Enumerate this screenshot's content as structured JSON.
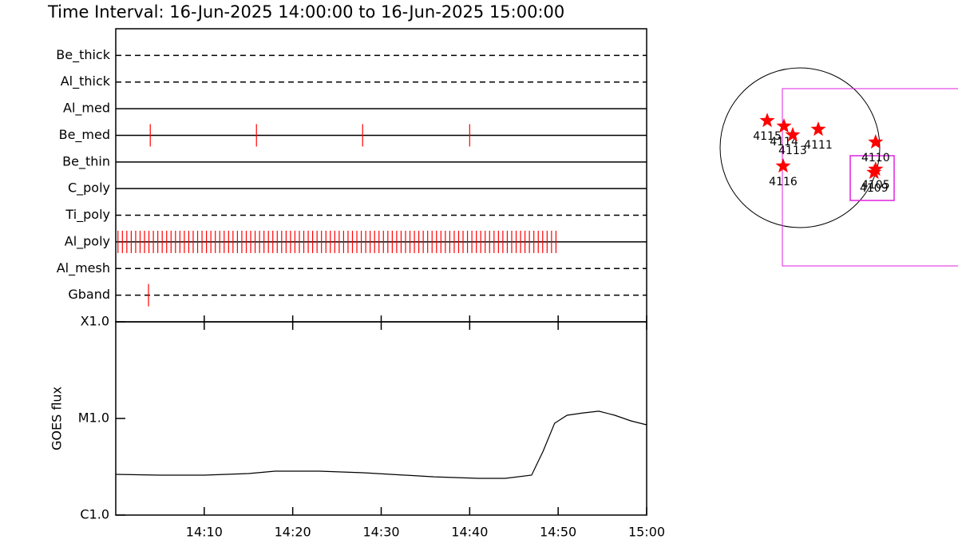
{
  "chart_data": [
    {
      "type": "timeline",
      "title": "Time Interval: 16-Jun-2025 14:00:00 to 16-Jun-2025 15:00:00",
      "xlim": [
        0,
        60
      ],
      "categories": [
        "Be_thick",
        "Al_thick",
        "Al_med",
        "Be_med",
        "Be_thin",
        "C_poly",
        "Ti_poly",
        "Al_poly",
        "Al_mesh",
        "Gband"
      ],
      "line_styles": [
        "dashed",
        "dashed",
        "solid",
        "solid",
        "solid",
        "solid",
        "dashed",
        "solid",
        "dashed",
        "dashed"
      ],
      "color": "#ff0000",
      "exposures": [
        [],
        [],
        [],
        [
          3.9,
          15.9,
          27.9,
          40
        ],
        [],
        [],
        [],
        [
          0.25,
          0.75,
          1.25,
          1.75,
          2.25,
          2.75,
          3.25,
          3.75,
          4.25,
          4.75,
          5.25,
          5.75,
          6.25,
          6.75,
          7.25,
          7.75,
          8.25,
          8.75,
          9.25,
          9.75,
          10.25,
          10.75,
          11.25,
          11.75,
          12.25,
          12.75,
          13.25,
          13.75,
          14.25,
          14.75,
          15.25,
          15.75,
          16.25,
          16.75,
          17.25,
          17.75,
          18.25,
          18.75,
          19.25,
          19.75,
          20.25,
          20.75,
          21.25,
          21.75,
          22.25,
          22.75,
          23.25,
          23.75,
          24.25,
          24.75,
          25.25,
          25.75,
          26.25,
          26.75,
          27.25,
          27.75,
          28.25,
          28.75,
          29.25,
          29.75,
          30.25,
          30.75,
          31.25,
          31.75,
          32.25,
          32.75,
          33.25,
          33.75,
          34.25,
          34.75,
          35.25,
          35.75,
          36.25,
          36.75,
          37.25,
          37.75,
          38.25,
          38.75,
          39.25,
          39.75,
          40.25,
          40.75,
          41.25,
          41.75,
          42.25,
          42.75,
          43.25,
          43.75,
          44.25,
          44.75,
          45.25,
          45.75,
          46.25,
          46.75,
          47.25,
          47.75,
          48.25,
          48.75,
          49.25,
          49.75
        ],
        [],
        [
          3.7
        ]
      ]
    },
    {
      "type": "line",
      "ylabel": "GOES flux",
      "log_scale": true,
      "color": "#000000",
      "xlim": [
        0,
        60
      ],
      "xticks": [
        {
          "value": 10,
          "label": "14:10"
        },
        {
          "value": 20,
          "label": "14:20"
        },
        {
          "value": 30,
          "label": "14:30"
        },
        {
          "value": 40,
          "label": "14:40"
        },
        {
          "value": 50,
          "label": "14:50"
        },
        {
          "value": 60,
          "label": "15:00"
        }
      ],
      "ylim": [
        1e-06,
        0.0001
      ],
      "yticks": [
        {
          "value": 1e-06,
          "label": "C1.0"
        },
        {
          "value": 1e-05,
          "label": "M1.0"
        },
        {
          "value": 0.0001,
          "label": "X1.0"
        }
      ],
      "x": [
        0,
        5,
        10,
        15,
        18,
        23,
        28,
        36,
        41,
        44,
        47,
        48.3,
        49.6,
        51,
        52.8,
        54.6,
        56.4,
        58.2,
        60
      ],
      "values": [
        2.64e-06,
        2.59e-06,
        2.59e-06,
        2.69e-06,
        2.85e-06,
        2.85e-06,
        2.74e-06,
        2.49e-06,
        2.4e-06,
        2.4e-06,
        2.59e-06,
        4.58e-06,
        8.92e-06,
        1.08e-05,
        1.14e-05,
        1.19e-05,
        1.08e-05,
        9.45e-06,
        8.59e-06
      ]
    },
    {
      "type": "scatter",
      "color": "#ff0000",
      "labels": [
        "4115",
        "4114",
        "4113",
        "4111",
        "4110",
        "4116",
        "4105",
        "4109"
      ],
      "x": [
        -390,
        -190,
        -86,
        219,
        903,
        -200,
        903,
        884
      ],
      "y": [
        323,
        257,
        152,
        219,
        67,
        -219,
        -257,
        -295
      ]
    }
  ]
}
